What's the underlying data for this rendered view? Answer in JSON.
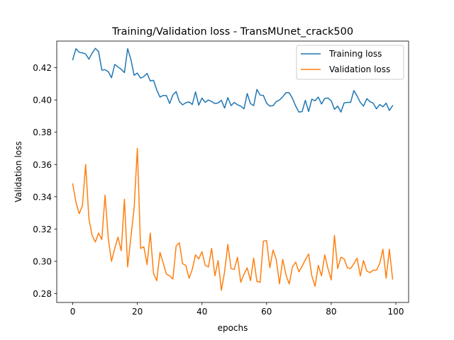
{
  "chart_data": {
    "type": "line",
    "title": "Training/Validation loss - TransMUnet_crack500",
    "xlabel": "epochs",
    "ylabel": "Validation loss",
    "xlim": [
      -4.95,
      103.95
    ],
    "ylim": [
      0.2745,
      0.4365
    ],
    "xticks": [
      0,
      20,
      40,
      60,
      80,
      100
    ],
    "yticks": [
      0.28,
      0.3,
      0.32,
      0.34,
      0.36,
      0.38,
      0.4,
      0.42
    ],
    "ytick_labels": [
      "0.28",
      "0.30",
      "0.32",
      "0.34",
      "0.36",
      "0.38",
      "0.40",
      "0.42"
    ],
    "legend_position": "top-right",
    "grid": false,
    "series": [
      {
        "name": "Training loss",
        "color": "#1f77b4",
        "values": [
          0.425,
          0.4318,
          0.4295,
          0.4292,
          0.4285,
          0.4253,
          0.429,
          0.432,
          0.43,
          0.4185,
          0.4188,
          0.4175,
          0.4138,
          0.422,
          0.4205,
          0.419,
          0.417,
          0.4318,
          0.425,
          0.4153,
          0.4167,
          0.4135,
          0.4145,
          0.4165,
          0.4118,
          0.4122,
          0.4062,
          0.4018,
          0.4028,
          0.4027,
          0.3978,
          0.4032,
          0.4052,
          0.399,
          0.397,
          0.3983,
          0.3988,
          0.3972,
          0.405,
          0.3968,
          0.4012,
          0.3985,
          0.4,
          0.399,
          0.3978,
          0.3982,
          0.3998,
          0.395,
          0.4015,
          0.3965,
          0.3985,
          0.397,
          0.3962,
          0.3945,
          0.404,
          0.3978,
          0.3965,
          0.4065,
          0.403,
          0.4028,
          0.398,
          0.3962,
          0.3965,
          0.399,
          0.4,
          0.402,
          0.4045,
          0.4045,
          0.401,
          0.3962,
          0.3925,
          0.3928,
          0.3998,
          0.3928,
          0.4005,
          0.3995,
          0.4018,
          0.3975,
          0.401,
          0.4012,
          0.3995,
          0.3942,
          0.3962,
          0.3925,
          0.3982,
          0.3985,
          0.3985,
          0.4058,
          0.4025,
          0.3985,
          0.3962,
          0.4008,
          0.399,
          0.398,
          0.3945,
          0.3972,
          0.3958,
          0.398,
          0.3935,
          0.3965
        ]
      },
      {
        "name": "Validation loss",
        "color": "#ff7f0e",
        "values": [
          0.348,
          0.3365,
          0.3295,
          0.3345,
          0.36,
          0.3265,
          0.316,
          0.312,
          0.3175,
          0.3135,
          0.341,
          0.314,
          0.3,
          0.308,
          0.315,
          0.3065,
          0.3385,
          0.2965,
          0.315,
          0.333,
          0.37,
          0.308,
          0.309,
          0.298,
          0.3175,
          0.2925,
          0.288,
          0.3055,
          0.299,
          0.292,
          0.291,
          0.289,
          0.3095,
          0.3115,
          0.2985,
          0.2975,
          0.2895,
          0.295,
          0.304,
          0.3015,
          0.306,
          0.2975,
          0.2965,
          0.308,
          0.291,
          0.3005,
          0.282,
          0.2935,
          0.3105,
          0.2955,
          0.295,
          0.3025,
          0.287,
          0.292,
          0.296,
          0.288,
          0.302,
          0.2875,
          0.287,
          0.3125,
          0.3128,
          0.296,
          0.307,
          0.301,
          0.286,
          0.3012,
          0.2915,
          0.286,
          0.2965,
          0.2995,
          0.2935,
          0.297,
          0.301,
          0.3045,
          0.291,
          0.2845,
          0.2975,
          0.291,
          0.304,
          0.2955,
          0.2885,
          0.316,
          0.2955,
          0.3025,
          0.3015,
          0.296,
          0.2955,
          0.2985,
          0.302,
          0.291,
          0.3005,
          0.294,
          0.293,
          0.2945,
          0.2945,
          0.2985,
          0.3075,
          0.2895,
          0.3075,
          0.289
        ]
      }
    ]
  }
}
